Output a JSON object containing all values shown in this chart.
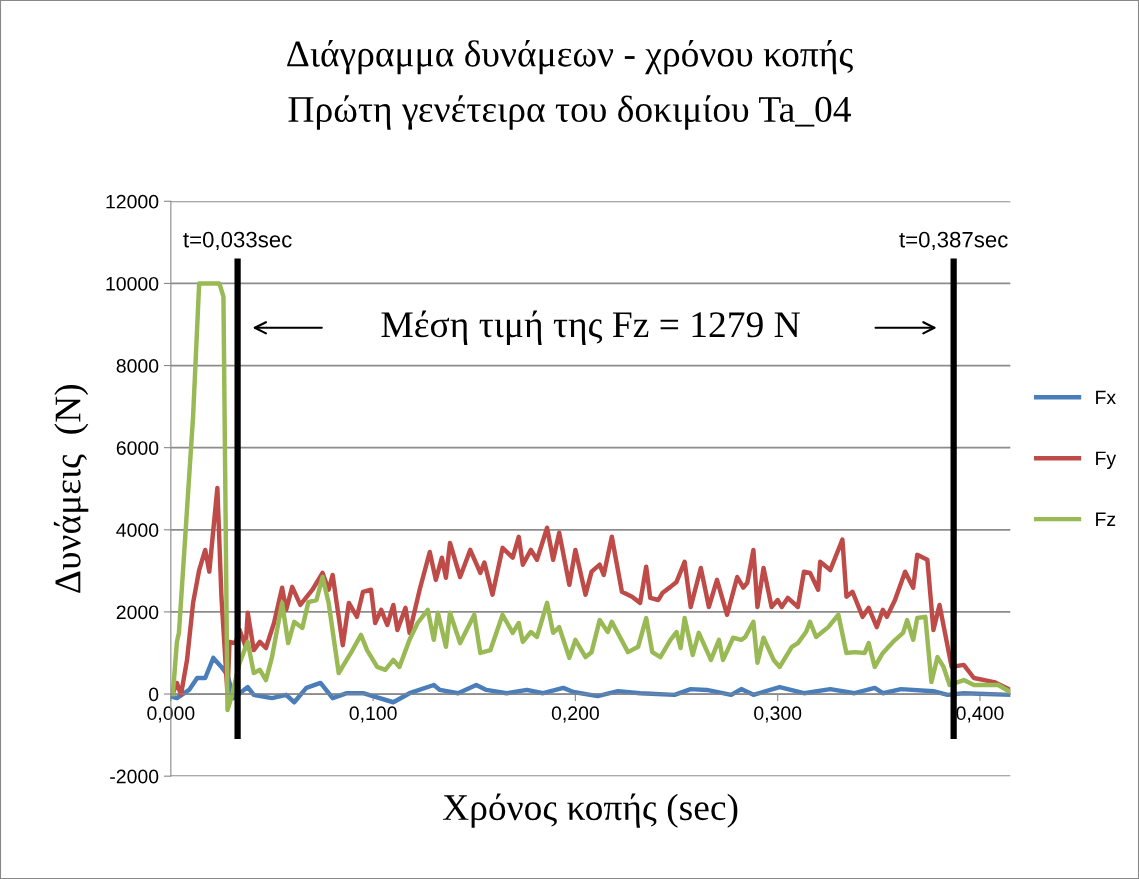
{
  "chart_data": {
    "type": "line",
    "title": "Διάγραμμα δυνάμεων - χρόνου κοπής",
    "subtitle": "Πρώτη γενέτειρα του δοκιμίου Ta_04",
    "xlabel": "Χρόνος κοπής (sec)",
    "ylabel": "Δυνάμεις  (N)",
    "annotations": [
      "Μέση τιμή της Fz = 1279 N"
    ],
    "xlim": [
      0,
      0.415
    ],
    "xticks": [
      {
        "value": 0,
        "label": "0,000"
      },
      {
        "value": 0.1,
        "label": "0,100"
      },
      {
        "value": 0.2,
        "label": "0,200"
      },
      {
        "value": 0.3,
        "label": "0,300"
      },
      {
        "value": 0.4,
        "label": "0,400"
      }
    ],
    "ylim": [
      -2000,
      12000
    ],
    "yticks": [
      -2000,
      0,
      2000,
      4000,
      6000,
      8000,
      10000,
      12000
    ],
    "grid": "y",
    "legend": "right",
    "marker": "none",
    "line_style": "solid",
    "ref_lines": [
      {
        "axis": "x",
        "value": 0.033,
        "label": "t=0,033sec",
        "color": "#000000"
      },
      {
        "axis": "x",
        "value": 0.387,
        "label": "t=0,387sec",
        "color": "#000000"
      }
    ],
    "series": [
      {
        "name": "Fx",
        "color": "#4a7ebb",
        "x": [
          0.001,
          0.003,
          0.009,
          0.013,
          0.017,
          0.021,
          0.025,
          0.028,
          0.031,
          0.038,
          0.041,
          0.05,
          0.057,
          0.061,
          0.067,
          0.074,
          0.08,
          0.087,
          0.095,
          0.11,
          0.118,
          0.13,
          0.133,
          0.142,
          0.151,
          0.156,
          0.166,
          0.176,
          0.184,
          0.194,
          0.199,
          0.211,
          0.221,
          0.232,
          0.249,
          0.257,
          0.265,
          0.277,
          0.282,
          0.288,
          0.301,
          0.313,
          0.326,
          0.338,
          0.348,
          0.352,
          0.361,
          0.377,
          0.384,
          0.392,
          0.415
        ],
        "values": [
          -70,
          -100,
          100,
          390,
          390,
          880,
          660,
          460,
          -100,
          170,
          -20,
          -100,
          -20,
          -200,
          150,
          270,
          -100,
          20,
          20,
          -200,
          20,
          220,
          100,
          20,
          220,
          100,
          20,
          100,
          20,
          150,
          50,
          -50,
          70,
          20,
          -20,
          120,
          100,
          -20,
          120,
          -20,
          170,
          20,
          120,
          20,
          150,
          20,
          120,
          70,
          -20,
          20,
          -20
        ]
      },
      {
        "name": "Fy",
        "color": "#be4b48",
        "x": [
          0.001,
          0.003,
          0.005,
          0.008,
          0.011,
          0.014,
          0.017,
          0.019,
          0.021,
          0.023,
          0.025,
          0.028,
          0.029,
          0.032,
          0.034,
          0.037,
          0.038,
          0.041,
          0.044,
          0.047,
          0.051,
          0.055,
          0.057,
          0.06,
          0.064,
          0.07,
          0.075,
          0.078,
          0.08,
          0.085,
          0.088,
          0.092,
          0.095,
          0.099,
          0.101,
          0.104,
          0.107,
          0.11,
          0.112,
          0.116,
          0.118,
          0.123,
          0.128,
          0.131,
          0.134,
          0.136,
          0.138,
          0.143,
          0.148,
          0.153,
          0.155,
          0.159,
          0.164,
          0.169,
          0.172,
          0.174,
          0.178,
          0.181,
          0.186,
          0.189,
          0.192,
          0.197,
          0.2,
          0.205,
          0.208,
          0.212,
          0.214,
          0.218,
          0.223,
          0.228,
          0.232,
          0.235,
          0.237,
          0.241,
          0.243,
          0.247,
          0.25,
          0.254,
          0.257,
          0.262,
          0.266,
          0.27,
          0.275,
          0.28,
          0.283,
          0.285,
          0.288,
          0.29,
          0.293,
          0.297,
          0.3,
          0.302,
          0.305,
          0.31,
          0.313,
          0.316,
          0.32,
          0.321,
          0.326,
          0.332,
          0.334,
          0.337,
          0.342,
          0.345,
          0.349,
          0.352,
          0.354,
          0.358,
          0.363,
          0.367,
          0.369,
          0.374,
          0.377,
          0.38,
          0.386,
          0.392,
          0.397,
          0.407,
          0.415
        ],
        "values": [
          20,
          270,
          -20,
          830,
          2220,
          3020,
          3510,
          2980,
          4000,
          5020,
          2370,
          0,
          1270,
          1240,
          1560,
          1150,
          1980,
          1070,
          1270,
          1120,
          1730,
          2590,
          2050,
          2610,
          2170,
          2540,
          2950,
          2540,
          2900,
          1190,
          2220,
          1880,
          2490,
          2540,
          1730,
          2050,
          1680,
          2170,
          1560,
          2100,
          1490,
          2540,
          3460,
          2780,
          3320,
          2830,
          3680,
          2850,
          3510,
          2950,
          3200,
          2420,
          3560,
          3320,
          3830,
          3150,
          3510,
          3270,
          4050,
          3270,
          3930,
          2660,
          3510,
          2420,
          2980,
          3150,
          2900,
          3830,
          2490,
          2370,
          2220,
          3100,
          2340,
          2290,
          2460,
          2610,
          2730,
          3220,
          2120,
          3070,
          2120,
          2780,
          1930,
          2850,
          2590,
          2710,
          3510,
          2120,
          3070,
          2120,
          2290,
          2120,
          2340,
          2120,
          2980,
          2950,
          2540,
          3220,
          3020,
          3760,
          2370,
          2490,
          1880,
          2100,
          1630,
          2050,
          1880,
          2290,
          2980,
          2590,
          3390,
          3270,
          1560,
          2170,
          660,
          710,
          390,
          290,
          100
        ]
      },
      {
        "name": "Fz",
        "color": "#98b954",
        "x": [
          0.001,
          0.003,
          0.004,
          0.011,
          0.014,
          0.024,
          0.026,
          0.028,
          0.03,
          0.034,
          0.038,
          0.041,
          0.044,
          0.047,
          0.05,
          0.055,
          0.058,
          0.061,
          0.065,
          0.068,
          0.072,
          0.075,
          0.078,
          0.083,
          0.089,
          0.094,
          0.097,
          0.102,
          0.106,
          0.11,
          0.113,
          0.118,
          0.122,
          0.127,
          0.13,
          0.132,
          0.136,
          0.138,
          0.143,
          0.15,
          0.153,
          0.158,
          0.164,
          0.169,
          0.172,
          0.174,
          0.178,
          0.181,
          0.186,
          0.189,
          0.192,
          0.197,
          0.2,
          0.205,
          0.208,
          0.212,
          0.216,
          0.218,
          0.226,
          0.231,
          0.235,
          0.238,
          0.242,
          0.247,
          0.25,
          0.252,
          0.254,
          0.258,
          0.261,
          0.267,
          0.271,
          0.273,
          0.278,
          0.282,
          0.284,
          0.288,
          0.29,
          0.293,
          0.298,
          0.301,
          0.307,
          0.31,
          0.314,
          0.316,
          0.319,
          0.325,
          0.33,
          0.334,
          0.338,
          0.343,
          0.345,
          0.348,
          0.352,
          0.357,
          0.362,
          0.364,
          0.367,
          0.369,
          0.373,
          0.376,
          0.379,
          0.382,
          0.385,
          0.392,
          0.397,
          0.409,
          0.415
        ],
        "values": [
          0,
          1270,
          1490,
          6760,
          10000,
          10000,
          9680,
          -390,
          -70,
          760,
          1270,
          510,
          590,
          340,
          900,
          2220,
          1240,
          1760,
          1610,
          2240,
          2290,
          2850,
          2220,
          510,
          1000,
          1440,
          1070,
          660,
          590,
          830,
          660,
          1320,
          1730,
          2050,
          1320,
          1980,
          1150,
          1980,
          1240,
          1930,
          1000,
          1070,
          1930,
          1490,
          1730,
          1270,
          1510,
          1390,
          2220,
          1490,
          1630,
          880,
          1320,
          900,
          1020,
          1800,
          1510,
          1760,
          1020,
          1150,
          1850,
          1020,
          900,
          1320,
          1510,
          1120,
          1850,
          950,
          1490,
          830,
          1320,
          830,
          1370,
          1320,
          1390,
          1760,
          760,
          1370,
          830,
          660,
          1150,
          1240,
          1510,
          1760,
          1390,
          1630,
          1930,
          1000,
          1020,
          1000,
          1240,
          660,
          1000,
          1270,
          1490,
          1800,
          1320,
          1850,
          1880,
          290,
          900,
          660,
          220,
          340,
          220,
          220,
          50
        ]
      }
    ]
  }
}
